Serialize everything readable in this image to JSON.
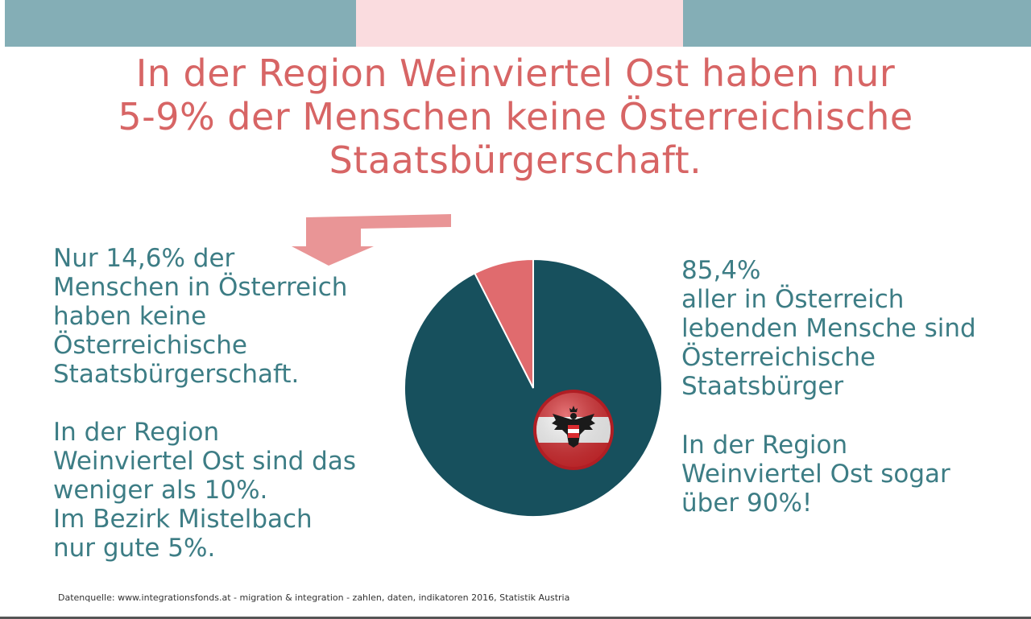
{
  "colors": {
    "bar_left": "#84aeb6",
    "bar_mid": "#fadcdf",
    "bar_right": "#84aeb6",
    "headline": "#d76565",
    "body_text": "#3d7d85",
    "pie_main": "#17505d",
    "pie_slice": "#e06b6e",
    "arrow": "#e99596"
  },
  "headline": {
    "line1": "In der Region Weinviertel Ost haben nur",
    "line2": "5-9% der Menschen keine Österreichische",
    "line3": "Staatsbürgerschaft."
  },
  "left_text": {
    "block1": [
      "Nur 14,6% der",
      "Menschen in Österreich",
      "haben keine",
      "Österreichische",
      "Staatsbürgerschaft."
    ],
    "block2": [
      "In der Region",
      "Weinviertel Ost sind das",
      "weniger als 10%.",
      "Im Bezirk Mistelbach",
      "nur gute 5%."
    ]
  },
  "right_text": {
    "block1": [
      "85,4%",
      "aller in Österreich",
      "lebenden Mensche sind",
      "Österreichische",
      "Staatsbürger"
    ],
    "block2": [
      "In der Region",
      "Weinviertel Ost sogar",
      "über 90%!"
    ]
  },
  "source": "Datenquelle: www.integrationsfonds.at - migration & integration - zahlen, daten, indikatoren 2016, Statistik Austria",
  "icons": {
    "flag": "austria-coat-of-arms-icon",
    "arrow": "arrow-down-left-icon"
  },
  "chart_data": {
    "type": "pie",
    "title": "",
    "slices": [
      {
        "value": 92.5,
        "color": "#17505d"
      },
      {
        "value": 7.5,
        "color": "#e06b6e"
      }
    ]
  }
}
